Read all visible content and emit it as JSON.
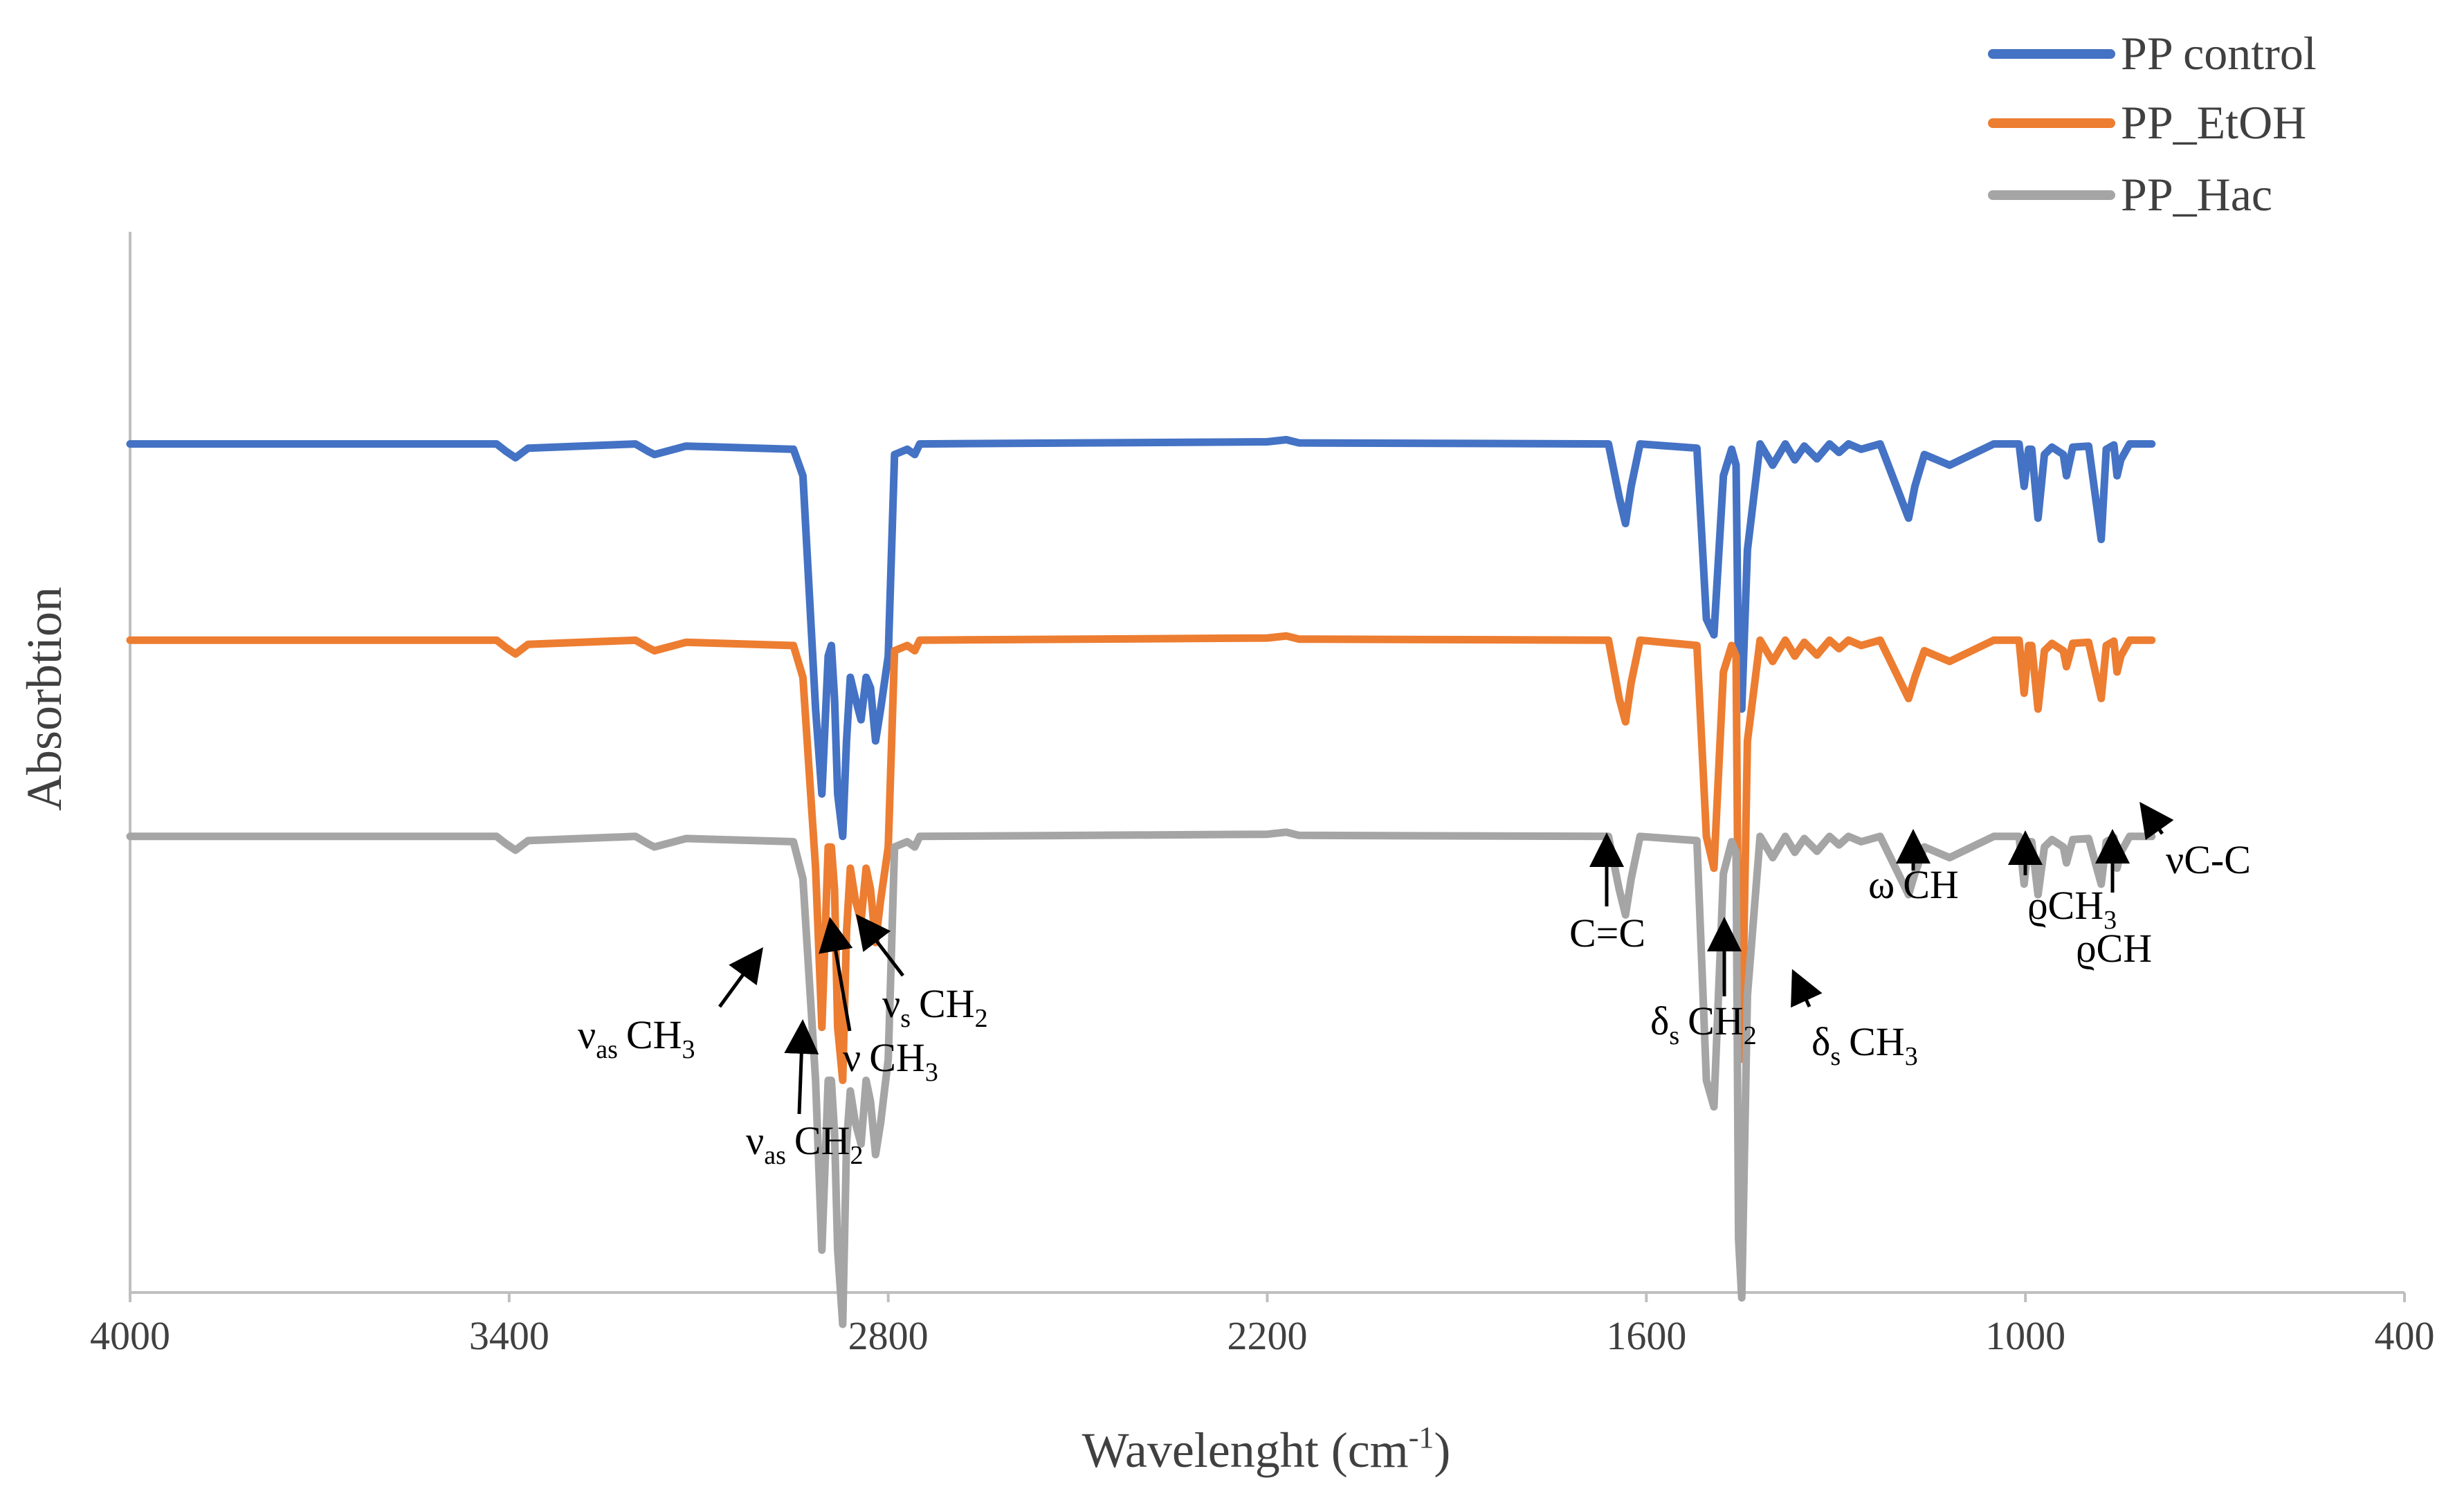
{
  "chart_data": {
    "type": "line",
    "title": "",
    "xlabel": "Wavelenght (cm",
    "xlabel_sup": "-1",
    "xlabel_end": ")",
    "ylabel": "Absorbtion",
    "xlim": [
      4000,
      400
    ],
    "x_reversed": true,
    "xticks": [
      4000,
      3400,
      2800,
      2200,
      1600,
      1000,
      400
    ],
    "ylim": [
      0,
      100
    ],
    "grid": false,
    "legend_position": "top-right",
    "series": [
      {
        "name": "PP control",
        "color": "#4472C4",
        "x": [
          4000,
          3420,
          3405,
          3390,
          3370,
          3200,
          3180,
          3170,
          3120,
          2950,
          2935,
          2915,
          2905,
          2895,
          2890,
          2885,
          2880,
          2872,
          2866,
          2860,
          2852,
          2843,
          2835,
          2828,
          2820,
          2812,
          2800,
          2790,
          2770,
          2758,
          2750,
          2200,
          2170,
          2150,
          1660,
          1643,
          1633,
          1624,
          1610,
          1520,
          1505,
          1493,
          1478,
          1465,
          1458,
          1454,
          1449,
          1440,
          1420,
          1400,
          1380,
          1365,
          1350,
          1330,
          1310,
          1295,
          1280,
          1260,
          1230,
          1185,
          1175,
          1160,
          1120,
          1050,
          1010,
          1002,
          995,
          990,
          980,
          970,
          958,
          940,
          935,
          925,
          900,
          880,
          872,
          860,
          855,
          849,
          835,
          800
        ],
        "values": [
          80,
          80,
          79.3,
          78.7,
          79.6,
          80,
          79.3,
          79,
          79.8,
          79.5,
          77,
          55,
          47,
          60,
          61,
          56,
          47,
          43,
          52,
          58,
          56,
          54,
          58,
          57,
          52,
          55,
          60,
          79,
          79.5,
          79,
          80,
          80.2,
          80.4,
          80.1,
          80,
          75,
          72.5,
          76,
          80,
          79.6,
          63.5,
          62,
          77,
          79.5,
          78,
          58,
          55,
          70,
          80,
          78,
          80,
          78.5,
          79.8,
          78.6,
          80,
          79.2,
          80,
          79.5,
          80,
          73,
          76,
          79,
          78,
          80,
          80,
          76,
          79.5,
          79.5,
          73,
          79,
          79.7,
          79,
          77,
          79.7,
          79.8,
          71,
          79.5,
          79.9,
          77,
          78.5,
          80,
          80
        ]
      },
      {
        "name": "PP_EtOH",
        "color": "#ED7D31",
        "x": [
          4000,
          3420,
          3405,
          3390,
          3370,
          3200,
          3180,
          3170,
          3120,
          2950,
          2935,
          2915,
          2905,
          2895,
          2890,
          2885,
          2880,
          2872,
          2866,
          2860,
          2852,
          2843,
          2835,
          2828,
          2820,
          2812,
          2800,
          2790,
          2770,
          2758,
          2750,
          2200,
          2170,
          2150,
          1660,
          1643,
          1633,
          1624,
          1610,
          1520,
          1505,
          1493,
          1478,
          1465,
          1458,
          1454,
          1449,
          1440,
          1420,
          1400,
          1380,
          1365,
          1350,
          1330,
          1310,
          1295,
          1280,
          1260,
          1230,
          1185,
          1175,
          1160,
          1120,
          1050,
          1010,
          1002,
          995,
          990,
          980,
          970,
          958,
          940,
          935,
          925,
          900,
          880,
          872,
          860,
          855,
          849,
          835,
          800
        ],
        "values": [
          61.5,
          61.5,
          60.8,
          60.2,
          61.1,
          61.5,
          60.8,
          60.5,
          61.3,
          61,
          58,
          40,
          25,
          42,
          42,
          38,
          25,
          20,
          34,
          40,
          37,
          35,
          40,
          38,
          33,
          37,
          42,
          60.5,
          61,
          60.5,
          61.5,
          61.7,
          61.9,
          61.6,
          61.5,
          56,
          53.8,
          57.5,
          61.5,
          61,
          43,
          40,
          58.5,
          61,
          60,
          30,
          22,
          52,
          61.5,
          59.5,
          61.5,
          60,
          61.3,
          60.1,
          61.5,
          60.7,
          61.5,
          61,
          61.5,
          56,
          58,
          60.5,
          59.5,
          61.5,
          61.5,
          56.5,
          61,
          61,
          55,
          60.5,
          61.2,
          60.5,
          59,
          61.2,
          61.3,
          56,
          61,
          61.4,
          58.5,
          60,
          61.5,
          61.5
        ]
      },
      {
        "name": "PP_Hac",
        "color": "#A5A5A5",
        "x": [
          4000,
          3420,
          3405,
          3390,
          3370,
          3200,
          3180,
          3170,
          3120,
          2950,
          2935,
          2915,
          2905,
          2895,
          2890,
          2885,
          2880,
          2872,
          2866,
          2860,
          2852,
          2843,
          2835,
          2828,
          2820,
          2812,
          2800,
          2790,
          2770,
          2758,
          2750,
          2200,
          2170,
          2150,
          1660,
          1643,
          1633,
          1624,
          1610,
          1520,
          1505,
          1493,
          1478,
          1465,
          1458,
          1454,
          1449,
          1440,
          1420,
          1400,
          1380,
          1365,
          1350,
          1330,
          1310,
          1295,
          1280,
          1260,
          1230,
          1185,
          1175,
          1160,
          1120,
          1050,
          1010,
          1002,
          995,
          990,
          980,
          970,
          958,
          940,
          935,
          925,
          900,
          880,
          872,
          860,
          855,
          849,
          835,
          800
        ],
        "values": [
          43,
          43,
          42.3,
          41.7,
          42.6,
          43,
          42.3,
          42,
          42.8,
          42.5,
          39,
          20,
          4,
          20,
          20,
          15,
          4,
          -3,
          14,
          19,
          16,
          14,
          20,
          18,
          13,
          16,
          22,
          42,
          42.5,
          42,
          43,
          43.2,
          43.4,
          43.1,
          43,
          38,
          35.6,
          39,
          43,
          42.6,
          20,
          17.5,
          39.5,
          42.5,
          41.5,
          5,
          -0.5,
          28,
          43,
          41,
          43,
          41.5,
          42.8,
          41.6,
          43,
          42.2,
          43,
          42.5,
          43,
          37.5,
          39.5,
          42,
          41,
          43,
          43,
          38.5,
          42.5,
          42.5,
          37.5,
          42,
          42.7,
          42,
          40.5,
          42.7,
          42.8,
          38.5,
          42.5,
          42.9,
          40,
          41.5,
          43,
          43
        ]
      }
    ],
    "annotations": [
      {
        "id": "vas-ch3",
        "base": "ν",
        "sub": "as",
        "rest": "CH",
        "sub2": "3"
      },
      {
        "id": "vas-ch2",
        "base": "ν",
        "sub": "as",
        "rest": "CH",
        "sub2": "2"
      },
      {
        "id": "v-ch3",
        "base": "ν",
        "sub": "",
        "rest": "CH",
        "sub2": "3"
      },
      {
        "id": "vs-ch2",
        "base": "ν",
        "sub": "s",
        "rest": "CH",
        "sub2": "2"
      },
      {
        "id": "c-eq-c",
        "base": "C=C",
        "sub": "",
        "rest": "",
        "sub2": ""
      },
      {
        "id": "ds-ch2",
        "base": "δ",
        "sub": "s",
        "rest": "CH",
        "sub2": "2"
      },
      {
        "id": "ds-ch3",
        "base": "δ",
        "sub": "s",
        "rest": "CH",
        "sub2": "3"
      },
      {
        "id": "omega-ch",
        "base": "ω",
        "sub": "",
        "rest": "CH",
        "sub2": ""
      },
      {
        "id": "rho-ch3",
        "base": "ϱ",
        "sub": "",
        "rest": "CH",
        "sub2": "3"
      },
      {
        "id": "rho-ch",
        "base": "ϱ",
        "sub": "",
        "rest": "CH",
        "sub2": ""
      },
      {
        "id": "v-cc",
        "base": "ν",
        "sub": "",
        "rest": "C-C",
        "sub2": ""
      }
    ]
  }
}
